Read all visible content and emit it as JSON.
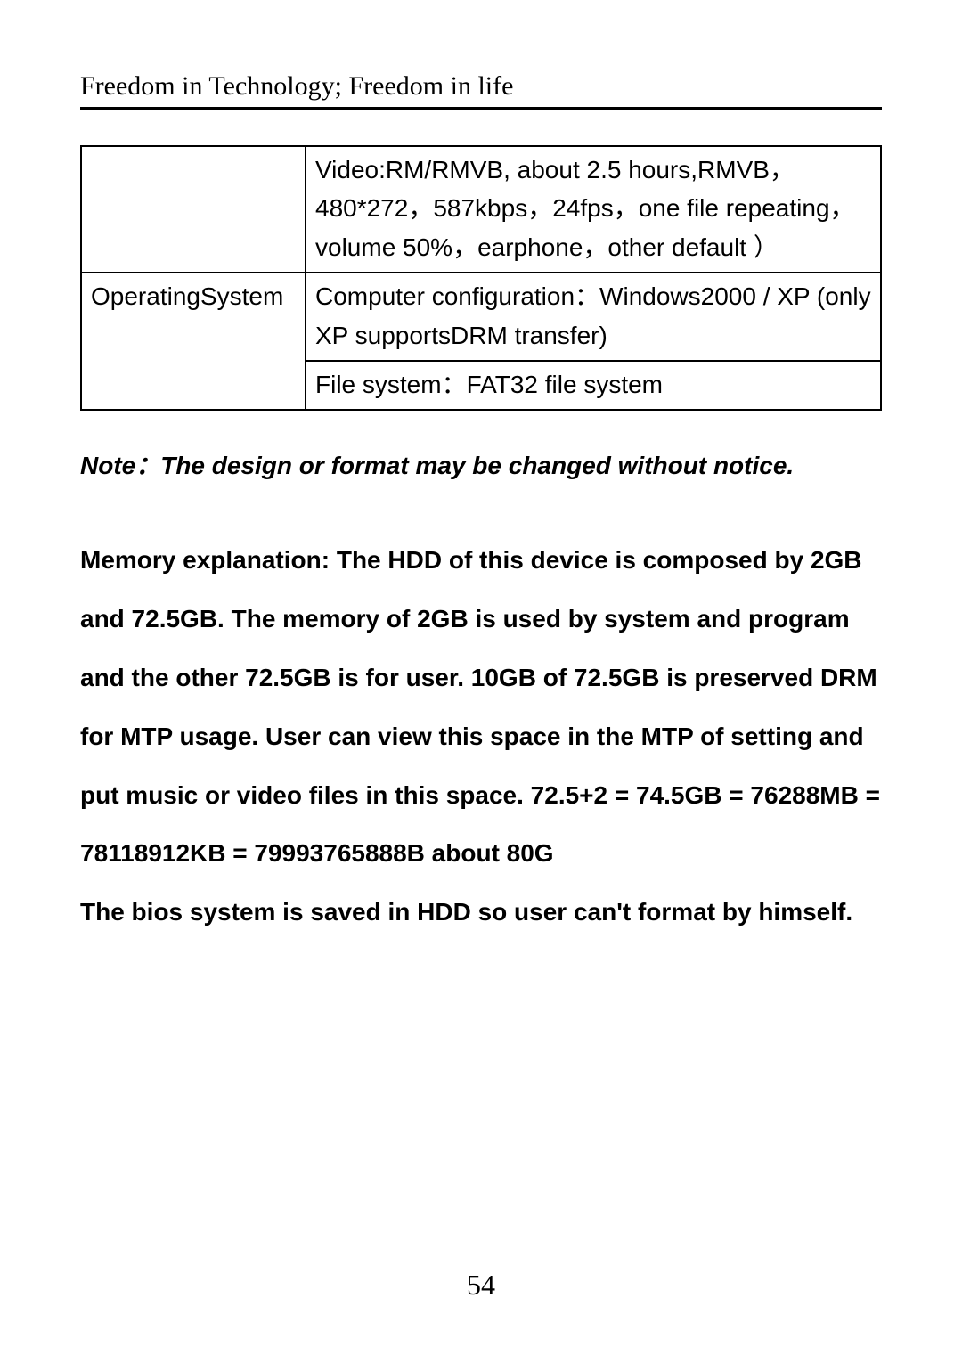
{
  "header": {
    "text": "Freedom in Technology; Freedom in life"
  },
  "table": {
    "rows": [
      {
        "label": "",
        "value": "Video:RM/RMVB, about 2.5 hours,RMVB，480*272，587kbps，24fps，one file repeating，volume 50%，earphone，other default ）"
      },
      {
        "label": "OperatingSystem",
        "value": "Computer configuration：Windows2000 / XP (only XP supportsDRM transfer)"
      },
      {
        "label": "",
        "value": "File system：FAT32 file system"
      }
    ]
  },
  "note": "Note：The design or format may be changed without notice.",
  "body": "Memory explanation: The HDD of this device is composed by 2GB and 72.5GB. The memory of 2GB is used by system and program and the other 72.5GB is for user. 10GB of 72.5GB is preserved DRM for MTP usage. User can view this space in the MTP of setting and put music or video files in this space. 72.5+2 = 74.5GB = 76288MB = 78118912KB = 79993765888B about 80G\nThe bios system is saved in HDD so user can't format by himself.",
  "pageNumber": "54",
  "colors": {
    "text": "#000000",
    "background": "#ffffff",
    "border": "#000000"
  },
  "fonts": {
    "header_family": "Times New Roman",
    "body_family": "Arial",
    "header_size_pt": 22,
    "table_size_pt": 21,
    "note_size_pt": 21,
    "body_size_pt": 21,
    "page_number_size_pt": 24
  }
}
